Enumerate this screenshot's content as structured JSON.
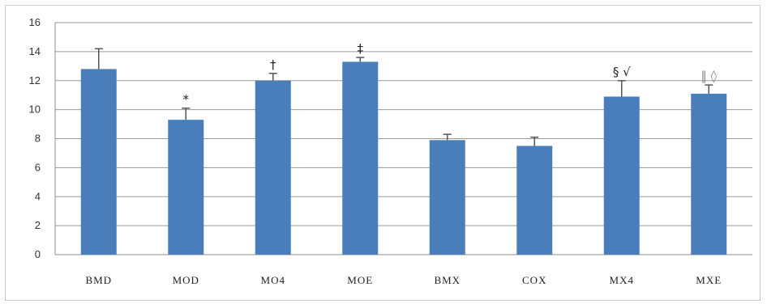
{
  "chart_data": {
    "type": "bar",
    "title": "",
    "xlabel": "",
    "ylabel": "",
    "ylim": [
      0,
      16
    ],
    "yticks": [
      0,
      2,
      4,
      6,
      8,
      10,
      12,
      14,
      16
    ],
    "grid": true,
    "legend": "none",
    "bar_color": "#4a7ebb",
    "error_bar_color": "#555555",
    "categories": [
      "BMD",
      "MOD",
      "MO4",
      "MOE",
      "BMX",
      "COX",
      "MX4",
      "MXE"
    ],
    "values": [
      12.8,
      9.3,
      12.0,
      13.3,
      7.9,
      7.5,
      10.9,
      11.1
    ],
    "errors": [
      1.4,
      0.8,
      0.5,
      0.3,
      0.4,
      0.6,
      1.1,
      0.6
    ],
    "annotations": [
      "",
      "*",
      "†",
      "‡",
      "",
      "",
      "§ √",
      "‖ ◊"
    ]
  }
}
